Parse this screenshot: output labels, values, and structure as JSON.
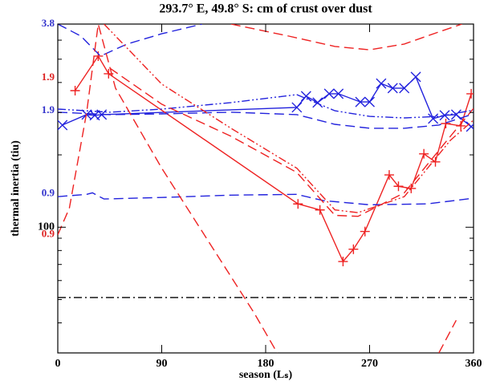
{
  "chart_data": {
    "type": "line",
    "title": "293.7° E, 49.8° S: cm of crust over dust",
    "xlabel": "season (Lₛ)",
    "ylabel": "thermal inertia (tiu)",
    "xlim": [
      0,
      360
    ],
    "xticks": [
      0,
      90,
      180,
      270,
      360
    ],
    "ylim": [
      30,
      700
    ],
    "ylog": true,
    "yticks": [
      100
    ],
    "yminorticks": [
      40,
      50,
      60,
      70,
      80,
      90,
      200,
      300,
      400,
      500,
      600,
      700
    ],
    "annotations": [
      {
        "text": "3.8",
        "color": "#3333cc",
        "y": 700
      },
      {
        "text": "1.9",
        "color": "#3333cc",
        "y": 305
      },
      {
        "text": "0.9",
        "color": "#3333cc",
        "y": 138
      },
      {
        "text": "1.9",
        "color": "#dd2222",
        "y": 419
      },
      {
        "text": "0.9",
        "color": "#dd2222",
        "y": 93
      }
    ],
    "series": [
      {
        "color": "#2222dd",
        "dash": "solid",
        "marker": "x",
        "x": [
          4,
          25,
          32,
          38,
          207,
          215,
          225,
          235,
          243,
          262,
          270,
          280,
          290,
          300,
          310,
          325,
          335,
          345,
          358
        ],
        "values": [
          266,
          294,
          292,
          294,
          315,
          351,
          330,
          359,
          359,
          332,
          332,
          396,
          379,
          379,
          422,
          283,
          292,
          294,
          262
        ]
      },
      {
        "color": "#ee2222",
        "dash": "solid",
        "marker": "+",
        "x": [
          15,
          35,
          44,
          208,
          227,
          247,
          256,
          266,
          287,
          295,
          306,
          317,
          327,
          336,
          349,
          358
        ],
        "values": [
          370,
          515,
          435,
          125,
          118,
          72,
          81,
          96,
          165,
          148,
          145,
          202,
          187,
          270,
          264,
          359
        ]
      },
      {
        "color": "#2222dd",
        "dash": "dash",
        "marker": "none",
        "x": [
          0,
          20,
          37,
          60,
          90,
          125
        ],
        "values": [
          700,
          624,
          515,
          578,
          638,
          700
        ]
      },
      {
        "color": "#2222dd",
        "dash": "dash",
        "marker": "none",
        "x": [
          0,
          45,
          90,
          150,
          207,
          240,
          270,
          300,
          330,
          360
        ],
        "values": [
          301,
          294,
          296,
          301,
          294,
          268,
          258,
          258,
          266,
          296
        ]
      },
      {
        "color": "#2222dd",
        "dash": "dashdotdot",
        "marker": "none",
        "x": [
          0,
          45,
          90,
          150,
          207,
          240,
          270,
          300,
          330,
          360
        ],
        "values": [
          310,
          301,
          310,
          330,
          356,
          305,
          289,
          285,
          289,
          307
        ]
      },
      {
        "color": "#2222dd",
        "dash": "dash",
        "marker": "none",
        "x": [
          0,
          25,
          30,
          40,
          90,
          150,
          207,
          230,
          270,
          320,
          360
        ],
        "values": [
          134,
          137,
          139,
          131,
          133,
          136,
          137,
          129,
          124,
          125,
          132
        ]
      },
      {
        "color": "#ee2222",
        "dash": "dash",
        "marker": "none",
        "x": [
          150,
          200,
          240,
          270,
          300,
          330,
          350
        ],
        "values": [
          700,
          624,
          565,
          547,
          578,
          649,
          700
        ]
      },
      {
        "color": "#ee2222",
        "dash": "dash",
        "marker": "none",
        "x": [
          0,
          10,
          25,
          35,
          50,
          90,
          130,
          170,
          190,
          null,
          330,
          345
        ],
        "values": [
          93,
          120,
          301,
          700,
          379,
          176,
          88,
          44,
          30,
          null,
          30,
          41
        ]
      },
      {
        "color": "#ee2222",
        "dash": "dash",
        "marker": "none",
        "x": [
          45,
          90,
          150,
          207,
          240,
          260,
          300,
          340,
          360
        ],
        "values": [
          459,
          325,
          239,
          169,
          112,
          111,
          139,
          239,
          312
        ]
      },
      {
        "color": "#ee2222",
        "dash": "dashdotdot",
        "marker": "none",
        "x": [
          40,
          90,
          150,
          207,
          240,
          260,
          300,
          340,
          360
        ],
        "values": [
          700,
          394,
          258,
          176,
          118,
          115,
          134,
          230,
          279
        ]
      },
      {
        "color": "#000000",
        "dash": "dashdot",
        "marker": "none",
        "x": [
          0,
          360
        ],
        "values": [
          51,
          51
        ]
      }
    ]
  }
}
